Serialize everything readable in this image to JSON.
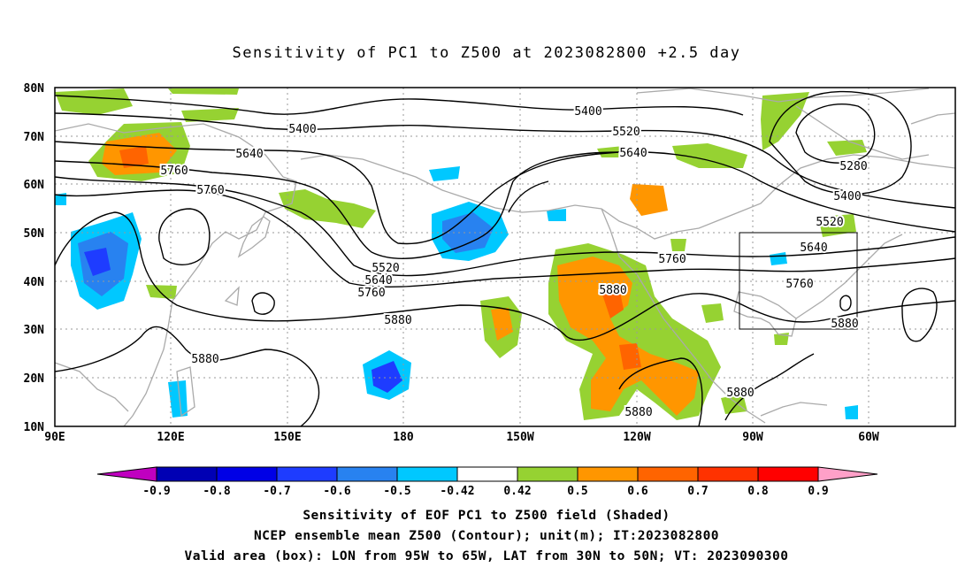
{
  "title": "Sensitivity of PC1 to Z500 at 2023082800 +2.5 day",
  "map": {
    "lon_range": [
      "90E",
      "70W"
    ],
    "lat_range": [
      "10N",
      "80N"
    ],
    "lat_labels": [
      "80N",
      "70N",
      "60N",
      "50N",
      "40N",
      "30N",
      "20N",
      "10N"
    ],
    "lon_labels": [
      "90E",
      "120E",
      "150E",
      "180",
      "150W",
      "120W",
      "90W",
      "60W"
    ],
    "contour_interval_m": 120,
    "contour_labels": [
      "5400",
      "5400",
      "5520",
      "5640",
      "5760",
      "5760",
      "5280",
      "5400",
      "5520",
      "5640",
      "5760",
      "5880",
      "5520",
      "5640",
      "5760",
      "5880",
      "5880",
      "5880",
      "5880",
      "5880",
      "5640",
      "5760"
    ],
    "valid_box": {
      "lon": [
        "95W",
        "65W"
      ],
      "lat": [
        "30N",
        "50N"
      ]
    },
    "colors": {
      "contour": "#000000",
      "coastline": "#aaaaaa",
      "grid": "#999999",
      "box": "#000000"
    }
  },
  "colorbar": {
    "labels": [
      "-0.9",
      "-0.8",
      "-0.7",
      "-0.6",
      "-0.5",
      "-0.42",
      "0.42",
      "0.5",
      "0.6",
      "0.7",
      "0.8",
      "0.9"
    ],
    "colors": [
      "#c000c0",
      "#0000b4",
      "#0000e6",
      "#1e3cff",
      "#2882f0",
      "#00c8ff",
      "#ffffff",
      "#96d232",
      "#ff9600",
      "#ff6400",
      "#ff3200",
      "#ff0000",
      "#ffa0c8"
    ]
  },
  "captions": [
    "Sensitivity of EOF PC1 to Z500 field (Shaded)",
    "NCEP ensemble mean Z500 (Contour); unit(m); IT:2023082800",
    "Valid area (box): LON from 95W to 65W, LAT from 30N to 50N; VT: 2023090300"
  ]
}
